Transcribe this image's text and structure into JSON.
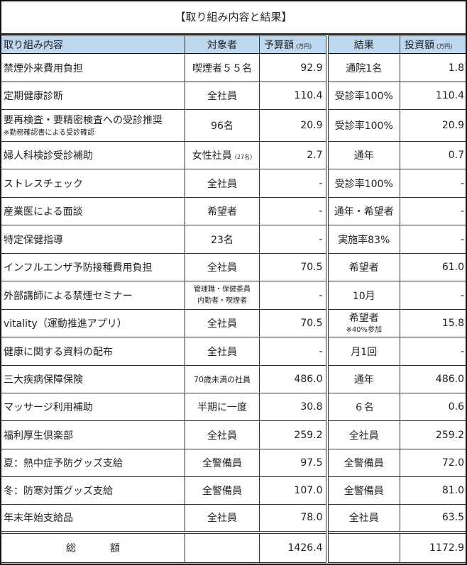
{
  "title": "【取り組み内容と結果】",
  "header": {
    "item": "取り組み内容",
    "target": "対象者",
    "budget": "予算額",
    "budget_unit": "(万円)",
    "result": "結果",
    "invest": "投資額",
    "invest_unit": "(万円)"
  },
  "rows": [
    {
      "item": "禁煙外来費用負担",
      "target": "喫煙者５５名",
      "budget": "92.9",
      "result": "通院1名",
      "invest": "1.8"
    },
    {
      "item": "定期健康診断",
      "target": "全社員",
      "budget": "110.4",
      "result": "受診率100%",
      "invest": "110.4"
    },
    {
      "item": "要再検査・要精密検査への受診推奨",
      "item_note": "※勤務確認書による受診確認",
      "target": "96名",
      "budget": "20.9",
      "result": "受診率100%",
      "invest": "20.9"
    },
    {
      "item": "婦人科検診受診補助",
      "target": "女性社員",
      "target_note": "(27名)",
      "budget": "2.7",
      "result": "通年",
      "invest": "0.7"
    },
    {
      "item": "ストレスチェック",
      "target": "全社員",
      "budget": "-",
      "result": "受診率100%",
      "invest": "-"
    },
    {
      "item": "産業医による面談",
      "target": "希望者",
      "budget": "-",
      "result": "通年・希望者",
      "invest": "-"
    },
    {
      "item": "特定保健指導",
      "target": "23名",
      "budget": "-",
      "result": "実施率83%",
      "invest": "-"
    },
    {
      "item": "インフルエンザ予防接種費用負担",
      "target": "全社員",
      "budget": "70.5",
      "result": "希望者",
      "invest": "61.0"
    },
    {
      "item": "外部講師による禁煙セミナー",
      "target_lines": [
        "管理職・保健委員",
        "内勤者・喫煙者"
      ],
      "budget": "-",
      "result": "10月",
      "invest": "-"
    },
    {
      "item": "vitality（運動推進アプリ）",
      "target": "全社員",
      "budget": "70.5",
      "result": "希望者",
      "result_note": "※40%参加",
      "invest": "15.8"
    },
    {
      "item": "健康に関する資料の配布",
      "target": "全社員",
      "budget": "-",
      "result": "月1回",
      "invest": "-"
    },
    {
      "item": "三大疾病保障保険",
      "target": "70歳未満の社員",
      "budget": "486.0",
      "result": "通年",
      "invest": "486.0"
    },
    {
      "item": "マッサージ利用補助",
      "target": "半期に一度",
      "budget": "30.8",
      "result": "６名",
      "invest": "0.6"
    },
    {
      "item": "福利厚生倶楽部",
      "target": "全社員",
      "budget": "259.2",
      "result": "全社員",
      "invest": "259.2"
    },
    {
      "item": "夏：熱中症予防グッズ支給",
      "target": "全警備員",
      "budget": "97.5",
      "result": "全警備員",
      "invest": "72.0"
    },
    {
      "item": "冬：防寒対策グッズ支給",
      "target": "全警備員",
      "budget": "107.0",
      "result": "全警備員",
      "invest": "81.0"
    },
    {
      "item": "年末年始支給品",
      "target": "全社員",
      "budget": "78.0",
      "result": "全社員",
      "invest": "63.5"
    }
  ],
  "total": {
    "label_1": "総",
    "label_2": "額",
    "budget": "1426.4",
    "invest": "1172.9"
  },
  "colors": {
    "header_bg": "#bdd7ee",
    "border": "#111111"
  }
}
